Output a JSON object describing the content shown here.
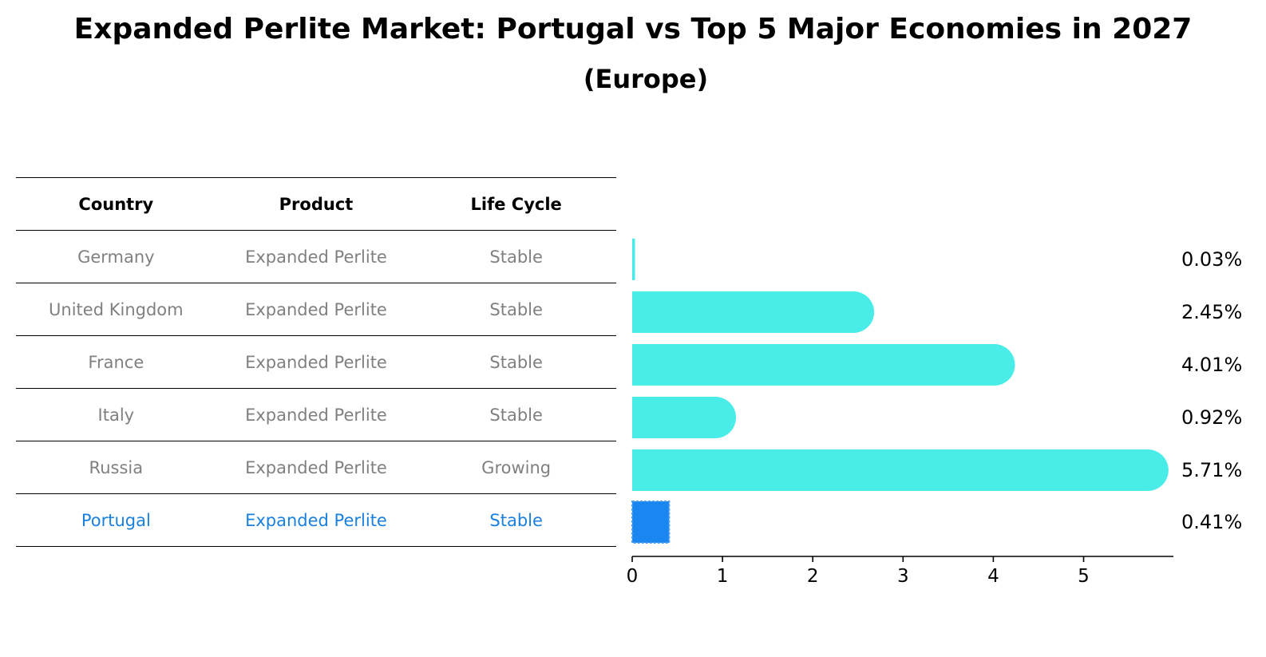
{
  "title": "Expanded Perlite Market: Portugal vs Top 5 Major Economies in 2027",
  "subtitle": "(Europe)",
  "table": {
    "headers": [
      "Country",
      "Product",
      "Life Cycle"
    ],
    "rows": [
      {
        "country": "Germany",
        "product": "Expanded Perlite",
        "life_cycle": "Stable"
      },
      {
        "country": "United Kingdom",
        "product": "Expanded Perlite",
        "life_cycle": "Stable"
      },
      {
        "country": "France",
        "product": "Expanded Perlite",
        "life_cycle": "Stable"
      },
      {
        "country": "Italy",
        "product": "Expanded Perlite",
        "life_cycle": "Stable"
      },
      {
        "country": "Russia",
        "product": "Expanded Perlite",
        "life_cycle": "Growing"
      },
      {
        "country": "Portugal",
        "product": "Expanded Perlite",
        "life_cycle": "Stable"
      }
    ]
  },
  "colors": {
    "bar": "#4aece8",
    "highlight_bar": "#1a86f0",
    "highlight_text": "#1a80e0",
    "row_text": "#808080"
  },
  "chart_data": {
    "type": "bar",
    "orientation": "horizontal",
    "categories": [
      "Germany",
      "United Kingdom",
      "France",
      "Italy",
      "Russia",
      "Portugal"
    ],
    "values": [
      0.03,
      2.45,
      4.01,
      0.92,
      5.71,
      0.41
    ],
    "value_labels": [
      "0.03%",
      "2.45%",
      "4.01%",
      "0.92%",
      "5.71%",
      "0.41%"
    ],
    "highlight": "Portugal",
    "xticks": [
      0,
      1,
      2,
      3,
      4,
      5
    ],
    "xlim": [
      0,
      6
    ],
    "grid": false
  }
}
